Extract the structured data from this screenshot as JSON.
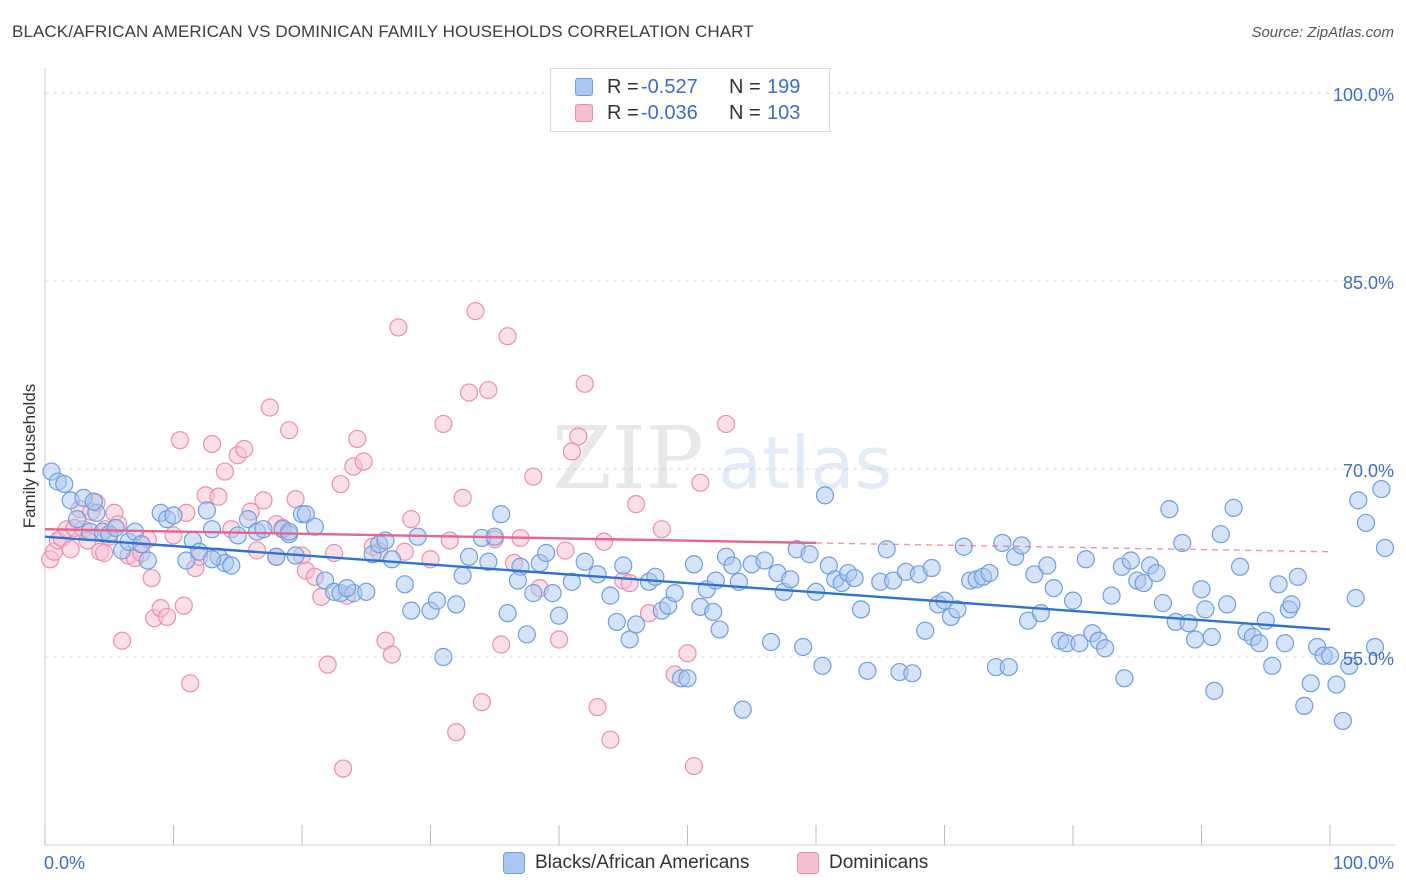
{
  "header": {
    "title": "BLACK/AFRICAN AMERICAN VS DOMINICAN FAMILY HOUSEHOLDS CORRELATION CHART",
    "source": "Source: ZipAtlas.com"
  },
  "watermark": {
    "zip": "ZIP",
    "atlas": "atlas"
  },
  "legend": {
    "rows": [
      {
        "r_label": "R =",
        "r_value": "-0.527",
        "n_label": "N =",
        "n_value": "199",
        "color": "#6f9fe0"
      },
      {
        "r_label": "R =",
        "r_value": "-0.036",
        "n_label": "N =",
        "n_value": "103",
        "color": "#ec8fae"
      }
    ]
  },
  "bottom_legend": {
    "items": [
      {
        "label": "Blacks/African Americans",
        "color": "#6f9fe0"
      },
      {
        "label": "Dominicans",
        "color": "#ec8fae"
      }
    ]
  },
  "colors": {
    "blue_fill": "#a9c7f0",
    "blue_stroke": "#6f9fe0",
    "blue_line": "#2e73d2",
    "pink_fill": "#f6bfd0",
    "pink_stroke": "#ec8fae",
    "pink_line": "#e8648f",
    "grid": "#dcdcdc",
    "axis_label": "#3b6fc6"
  },
  "chart_data": {
    "type": "scatter",
    "title": "BLACK/AFRICAN AMERICAN VS DOMINICAN FAMILY HOUSEHOLDS CORRELATION CHART",
    "xlabel": "",
    "ylabel": "Family Households",
    "xlim": [
      0,
      100
    ],
    "ylim": [
      40,
      102
    ],
    "x_tick_labels": [
      "0.0%",
      "100.0%"
    ],
    "y_ticks": [
      55,
      70,
      85,
      100
    ],
    "y_tick_labels": [
      "55.0%",
      "70.0%",
      "85.0%",
      "100.0%"
    ],
    "grid": true,
    "series": [
      {
        "name": "Blacks/African Americans",
        "r": -0.527,
        "n": 199,
        "trend": {
          "x": [
            0,
            100
          ],
          "y": [
            64.6,
            57.2
          ]
        },
        "points": [
          [
            0.5,
            69.8
          ],
          [
            1,
            69
          ],
          [
            1.5,
            68.8
          ],
          [
            2,
            67.5
          ],
          [
            2.5,
            66
          ],
          [
            3,
            67.7
          ],
          [
            3.5,
            65
          ],
          [
            4,
            66.5
          ],
          [
            3.8,
            67.4
          ],
          [
            4.5,
            65
          ],
          [
            5,
            64.8
          ],
          [
            5.5,
            65.3
          ],
          [
            6,
            63.5
          ],
          [
            6.5,
            64.2
          ],
          [
            7,
            65
          ],
          [
            7.5,
            64
          ],
          [
            8,
            62.7
          ],
          [
            9,
            66.5
          ],
          [
            9.5,
            66
          ],
          [
            10,
            66.3
          ],
          [
            11,
            62.7
          ],
          [
            11.5,
            64.3
          ],
          [
            12,
            63.4
          ],
          [
            12.6,
            66.7
          ],
          [
            13,
            65.2
          ],
          [
            13.5,
            63
          ],
          [
            14,
            62.5
          ],
          [
            14.5,
            62.3
          ],
          [
            15,
            64.7
          ],
          [
            15.8,
            66
          ],
          [
            16.5,
            65
          ],
          [
            17,
            65.2
          ],
          [
            18,
            63
          ],
          [
            18.5,
            65.2
          ],
          [
            19,
            64.8
          ],
          [
            19.5,
            63.1
          ],
          [
            20,
            66.4
          ],
          [
            20.3,
            66.4
          ],
          [
            21,
            65.4
          ],
          [
            21.8,
            61.1
          ],
          [
            22.5,
            60.2
          ],
          [
            23,
            60.1
          ],
          [
            24,
            60.1
          ],
          [
            25,
            60.2
          ],
          [
            25.5,
            63.2
          ],
          [
            26,
            64
          ],
          [
            26.5,
            64.3
          ],
          [
            27,
            62.8
          ],
          [
            28,
            60.8
          ],
          [
            28.5,
            58.7
          ],
          [
            29,
            64.6
          ],
          [
            30,
            58.7
          ],
          [
            30.5,
            59.5
          ],
          [
            31,
            55
          ],
          [
            32,
            59.2
          ],
          [
            32.5,
            61.5
          ],
          [
            33,
            63
          ],
          [
            34,
            64.5
          ],
          [
            34.5,
            62.6
          ],
          [
            35,
            64.6
          ],
          [
            35.5,
            66.4
          ],
          [
            36,
            58.5
          ],
          [
            37,
            62.2
          ],
          [
            37.5,
            56.8
          ],
          [
            38,
            60.1
          ],
          [
            38.5,
            62.5
          ],
          [
            39,
            63.3
          ],
          [
            39.5,
            60.1
          ],
          [
            40,
            58.3
          ],
          [
            41,
            61
          ],
          [
            42,
            62.6
          ],
          [
            43,
            61.6
          ],
          [
            44,
            59.9
          ],
          [
            44.5,
            57.8
          ],
          [
            45,
            62.3
          ],
          [
            45.5,
            56.4
          ],
          [
            46,
            57.6
          ],
          [
            47,
            61
          ],
          [
            47.5,
            61.4
          ],
          [
            48,
            58.7
          ],
          [
            48.5,
            59.1
          ],
          [
            49,
            60.1
          ],
          [
            49.5,
            53.3
          ],
          [
            50,
            53.3
          ],
          [
            50.5,
            62.4
          ],
          [
            51,
            59
          ],
          [
            51.5,
            60.4
          ],
          [
            52,
            58.6
          ],
          [
            52.5,
            57.2
          ],
          [
            53,
            63
          ],
          [
            53.5,
            62.3
          ],
          [
            54,
            61
          ],
          [
            54.3,
            50.8
          ],
          [
            55,
            62.4
          ],
          [
            56,
            62.7
          ],
          [
            56.5,
            56.2
          ],
          [
            57,
            61.7
          ],
          [
            57.5,
            60.2
          ],
          [
            58,
            61.2
          ],
          [
            58.5,
            63.6
          ],
          [
            59,
            55.8
          ],
          [
            59.5,
            63.2
          ],
          [
            60,
            60.2
          ],
          [
            60.5,
            54.3
          ],
          [
            61,
            62.3
          ],
          [
            61.5,
            61.2
          ],
          [
            62,
            60.9
          ],
          [
            62.5,
            61.7
          ],
          [
            63,
            61.3
          ],
          [
            63.5,
            58.8
          ],
          [
            64,
            53.9
          ],
          [
            65,
            61
          ],
          [
            65.5,
            63.6
          ],
          [
            66,
            61.1
          ],
          [
            66.5,
            53.8
          ],
          [
            67,
            61.8
          ],
          [
            67.5,
            53.7
          ],
          [
            68,
            61.6
          ],
          [
            68.5,
            57.1
          ],
          [
            69,
            62.1
          ],
          [
            69.5,
            59.2
          ],
          [
            70,
            59.5
          ],
          [
            70.5,
            58.2
          ],
          [
            71,
            58.8
          ],
          [
            71.5,
            63.8
          ],
          [
            72,
            61.1
          ],
          [
            72.5,
            61.2
          ],
          [
            73,
            61.4
          ],
          [
            73.5,
            61.7
          ],
          [
            74,
            54.2
          ],
          [
            74.5,
            64.1
          ],
          [
            75,
            54.2
          ],
          [
            75.5,
            63
          ],
          [
            76,
            63.9
          ],
          [
            76.5,
            57.9
          ],
          [
            77,
            61.6
          ],
          [
            77.5,
            58.5
          ],
          [
            78,
            62.3
          ],
          [
            78.5,
            60.5
          ],
          [
            79,
            56.3
          ],
          [
            79.5,
            56.1
          ],
          [
            80,
            59.5
          ],
          [
            80.5,
            56.1
          ],
          [
            81,
            62.8
          ],
          [
            81.5,
            56.9
          ],
          [
            82,
            56.3
          ],
          [
            82.5,
            55.7
          ],
          [
            83,
            59.9
          ],
          [
            83.8,
            62.2
          ],
          [
            84,
            53.3
          ],
          [
            84.5,
            62.7
          ],
          [
            85,
            61.1
          ],
          [
            85.5,
            60.9
          ],
          [
            86,
            62.3
          ],
          [
            86.5,
            61.7
          ],
          [
            87,
            59.3
          ],
          [
            87.5,
            66.8
          ],
          [
            88,
            57.8
          ],
          [
            89,
            57.7
          ],
          [
            89.5,
            56.4
          ],
          [
            90,
            60.4
          ],
          [
            90.3,
            58.8
          ],
          [
            90.8,
            56.6
          ],
          [
            91,
            52.3
          ],
          [
            91.5,
            64.8
          ],
          [
            92,
            59.2
          ],
          [
            92.5,
            66.9
          ],
          [
            93,
            62.2
          ],
          [
            93.5,
            57
          ],
          [
            94,
            56.6
          ],
          [
            94.5,
            56.1
          ],
          [
            95,
            57.9
          ],
          [
            95.5,
            54.3
          ],
          [
            96,
            60.8
          ],
          [
            96.5,
            56.1
          ],
          [
            96.8,
            58.8
          ],
          [
            97,
            59.2
          ],
          [
            97.5,
            61.4
          ],
          [
            98,
            51.1
          ],
          [
            98.5,
            52.9
          ],
          [
            99,
            55.8
          ],
          [
            99.5,
            55.1
          ],
          [
            100,
            55.1
          ],
          [
            100.5,
            52.8
          ],
          [
            101,
            49.9
          ],
          [
            101.5,
            54.3
          ],
          [
            102,
            59.7
          ],
          [
            102.2,
            67.5
          ],
          [
            102.8,
            65.7
          ],
          [
            103.5,
            55.8
          ],
          [
            104,
            68.4
          ],
          [
            104.5,
            63.7
          ],
          [
            60.7,
            67.9
          ],
          [
            52.2,
            61.1
          ],
          [
            88.5,
            64.1
          ],
          [
            23.5,
            60.5
          ],
          [
            19,
            65
          ],
          [
            13,
            62.8
          ],
          [
            36.8,
            61.1
          ]
        ]
      },
      {
        "name": "Dominicans",
        "r": -0.036,
        "n": 103,
        "trend": {
          "x": [
            0,
            60
          ],
          "y": [
            65.2,
            64.1
          ]
        },
        "trend_dashed": {
          "x": [
            60,
            100
          ],
          "y": [
            64.1,
            63.4
          ]
        },
        "points": [
          [
            0.4,
            62.8
          ],
          [
            0.7,
            63.4
          ],
          [
            1,
            64.3
          ],
          [
            1.3,
            64.5
          ],
          [
            1.7,
            65.2
          ],
          [
            2,
            63.6
          ],
          [
            2.3,
            65.3
          ],
          [
            2.7,
            66.8
          ],
          [
            3,
            65.2
          ],
          [
            3.3,
            64.3
          ],
          [
            3.6,
            66.6
          ],
          [
            4,
            67.3
          ],
          [
            4.3,
            63.4
          ],
          [
            4.7,
            65.2
          ],
          [
            5,
            64.6
          ],
          [
            5.4,
            66.5
          ],
          [
            5.7,
            65.6
          ],
          [
            6,
            56.3
          ],
          [
            6.5,
            63.1
          ],
          [
            7,
            62.9
          ],
          [
            7.5,
            63.3
          ],
          [
            8,
            64.4
          ],
          [
            8.5,
            58.1
          ],
          [
            9,
            58.9
          ],
          [
            9.5,
            58.2
          ],
          [
            10,
            64.7
          ],
          [
            10.5,
            72.3
          ],
          [
            10.8,
            59.1
          ],
          [
            11,
            66.5
          ],
          [
            11.3,
            52.9
          ],
          [
            11.7,
            62.1
          ],
          [
            12,
            63
          ],
          [
            12.5,
            67.9
          ],
          [
            13,
            72
          ],
          [
            13.5,
            67.8
          ],
          [
            14,
            69.8
          ],
          [
            14.5,
            65.2
          ],
          [
            15,
            71.1
          ],
          [
            15.5,
            71.6
          ],
          [
            16,
            66.6
          ],
          [
            16.5,
            63.5
          ],
          [
            17,
            67.5
          ],
          [
            17.5,
            74.9
          ],
          [
            18,
            65.6
          ],
          [
            18.5,
            65.3
          ],
          [
            19,
            73.1
          ],
          [
            19.5,
            67.6
          ],
          [
            20,
            63.1
          ],
          [
            20.3,
            61.9
          ],
          [
            21,
            61.4
          ],
          [
            21.5,
            59.8
          ],
          [
            22,
            54.4
          ],
          [
            22.5,
            63.3
          ],
          [
            23,
            68.8
          ],
          [
            23.5,
            59.9
          ],
          [
            24,
            70.2
          ],
          [
            24.3,
            72.4
          ],
          [
            24.8,
            70.6
          ],
          [
            25.5,
            63.8
          ],
          [
            26,
            63.4
          ],
          [
            26.5,
            56.3
          ],
          [
            27,
            55.2
          ],
          [
            27.5,
            81.3
          ],
          [
            28,
            63.4
          ],
          [
            28.5,
            66
          ],
          [
            30,
            62.8
          ],
          [
            31,
            73.6
          ],
          [
            32,
            49
          ],
          [
            31.5,
            64.3
          ],
          [
            32.5,
            67.7
          ],
          [
            33,
            76.1
          ],
          [
            33.5,
            82.6
          ],
          [
            34,
            51.4
          ],
          [
            34.5,
            76.3
          ],
          [
            35,
            64.4
          ],
          [
            35.5,
            56
          ],
          [
            36,
            80.6
          ],
          [
            36.5,
            62.5
          ],
          [
            37,
            64.5
          ],
          [
            38,
            69.4
          ],
          [
            38.5,
            60.5
          ],
          [
            40,
            56.4
          ],
          [
            40.5,
            63.5
          ],
          [
            41,
            71.4
          ],
          [
            41.5,
            72.6
          ],
          [
            42,
            76.8
          ],
          [
            43,
            51
          ],
          [
            43.5,
            64.2
          ],
          [
            44,
            48.4
          ],
          [
            45,
            61.1
          ],
          [
            45.5,
            60.9
          ],
          [
            46,
            67.2
          ],
          [
            47,
            58.5
          ],
          [
            48,
            65.2
          ],
          [
            49,
            53.6
          ],
          [
            50,
            55.3
          ],
          [
            50.5,
            46.3
          ],
          [
            51,
            68.9
          ],
          [
            53,
            73.6
          ],
          [
            23.2,
            46.1
          ],
          [
            4.6,
            63.3
          ],
          [
            8.3,
            61.3
          ],
          [
            18,
            63
          ]
        ]
      }
    ]
  }
}
